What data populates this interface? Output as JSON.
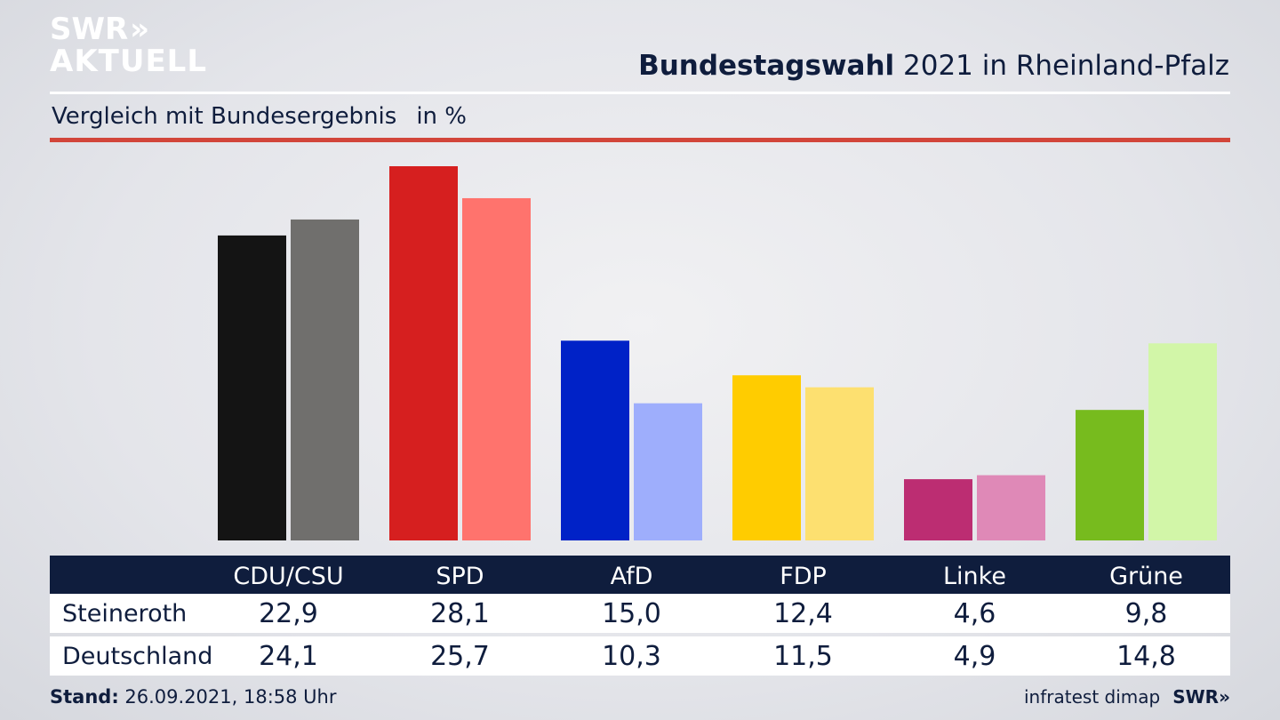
{
  "brand": {
    "logo_line1": "SWR",
    "logo_chevrons": "»",
    "logo_line2": "AKTUELL"
  },
  "header": {
    "title_bold": "Bundestagswahl",
    "title_rest": " 2021 in Rheinland-Pfalz",
    "subtitle": "Vergleich mit Bundesergebnis",
    "unit": "in %"
  },
  "chart_data": {
    "type": "bar",
    "categories": [
      "CDU/CSU",
      "SPD",
      "AfD",
      "FDP",
      "Linke",
      "Grüne"
    ],
    "series": [
      {
        "name": "Steineroth",
        "values": [
          22.9,
          28.1,
          15.0,
          12.4,
          4.6,
          9.8
        ]
      },
      {
        "name": "Deutschland",
        "values": [
          24.1,
          25.7,
          10.3,
          11.5,
          4.9,
          14.8
        ]
      }
    ],
    "series_colors": [
      [
        "#141414",
        "#d61f1f",
        "#0022c7",
        "#ffcc00",
        "#bc2d72",
        "#77bb1e"
      ],
      [
        "#706f6d",
        "#ff736d",
        "#9eaefc",
        "#fde070",
        "#df89b7",
        "#d2f6a8"
      ]
    ],
    "ylim": [
      0,
      28.1
    ],
    "legend": "none",
    "grid": false
  },
  "table": {
    "headers": [
      "CDU/CSU",
      "SPD",
      "AfD",
      "FDP",
      "Linke",
      "Grüne"
    ],
    "rows": [
      {
        "label": "Steineroth",
        "values": [
          "22,9",
          "28,1",
          "15,0",
          "12,4",
          "4,6",
          "9,8"
        ]
      },
      {
        "label": "Deutschland",
        "values": [
          "24,1",
          "25,7",
          "10,3",
          "11,5",
          "4,9",
          "14,8"
        ]
      }
    ]
  },
  "footer": {
    "stand_label": "Stand:",
    "stand_value": " 26.09.2021, 18:58 Uhr",
    "source": "infratest dimap",
    "brand": "SWR»"
  }
}
